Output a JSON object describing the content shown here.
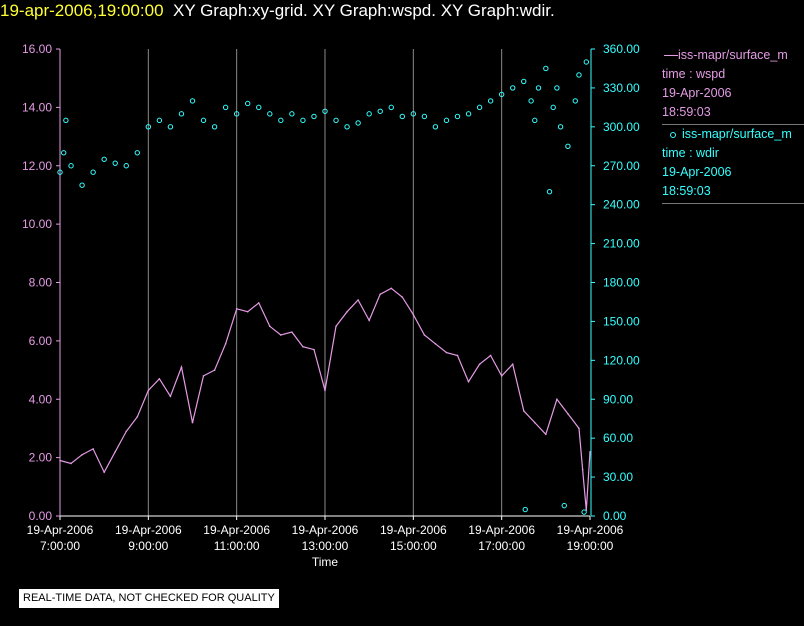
{
  "header": {
    "timestamp": "19-apr-2006,19:00:00",
    "graphs": "XY Graph:xy-grid.  XY Graph:wspd.  XY Graph:wdir."
  },
  "legend": [
    {
      "name": "iss-mapr/surface_m",
      "field": "time : wspd",
      "date": "19-Apr-2006",
      "time": "18:59:03",
      "color": "#e59be5",
      "marker": "line"
    },
    {
      "name": "iss-mapr/surface_m",
      "field": "time : wdir",
      "date": "19-Apr-2006",
      "time": "18:59:03",
      "color": "#33ffff",
      "marker": "circle"
    }
  ],
  "disclaimer": "REAL-TIME DATA, NOT CHECKED FOR QUALITY",
  "chart_data": {
    "type": "line",
    "xlabel": "Time",
    "x_ticks": [
      {
        "date": "19-Apr-2006",
        "time": "7:00:00"
      },
      {
        "date": "19-Apr-2006",
        "time": "9:00:00"
      },
      {
        "date": "19-Apr-2006",
        "time": "11:00:00"
      },
      {
        "date": "19-Apr-2006",
        "time": "13:00:00"
      },
      {
        "date": "19-Apr-2006",
        "time": "15:00:00"
      },
      {
        "date": "19-Apr-2006",
        "time": "17:00:00"
      },
      {
        "date": "19-Apr-2006",
        "time": "19:00:00"
      }
    ],
    "xlim": [
      "19-Apr-2006 07:00",
      "19-Apr-2006 19:00"
    ],
    "grid_x": true,
    "left_axis": {
      "ylim": [
        0,
        16
      ],
      "ticks": [
        "0.00",
        "2.00",
        "4.00",
        "6.00",
        "8.00",
        "10.00",
        "12.00",
        "14.00",
        "16.00"
      ],
      "color": "#e59be5"
    },
    "right_axis": {
      "ylim": [
        0,
        360
      ],
      "ticks": [
        "0.00",
        "30.00",
        "60.00",
        "90.00",
        "120.00",
        "150.00",
        "180.00",
        "210.00",
        "240.00",
        "270.00",
        "300.00",
        "330.00",
        "360.00"
      ],
      "color": "#33ffff"
    },
    "series": [
      {
        "name": "time : wspd",
        "axis": "left",
        "style": "line",
        "color": "#e59be5",
        "points": [
          [
            "07:00",
            1.9
          ],
          [
            "07:15",
            1.8
          ],
          [
            "07:30",
            2.1
          ],
          [
            "07:45",
            2.3
          ],
          [
            "08:00",
            1.5
          ],
          [
            "08:15",
            2.2
          ],
          [
            "08:30",
            2.9
          ],
          [
            "08:45",
            3.4
          ],
          [
            "09:00",
            4.3
          ],
          [
            "09:15",
            4.7
          ],
          [
            "09:30",
            4.1
          ],
          [
            "09:45",
            5.1
          ],
          [
            "10:00",
            3.2
          ],
          [
            "10:15",
            4.8
          ],
          [
            "10:30",
            5.0
          ],
          [
            "10:45",
            5.9
          ],
          [
            "11:00",
            7.1
          ],
          [
            "11:15",
            7.0
          ],
          [
            "11:30",
            7.3
          ],
          [
            "11:45",
            6.5
          ],
          [
            "12:00",
            6.2
          ],
          [
            "12:15",
            6.3
          ],
          [
            "12:30",
            5.8
          ],
          [
            "12:45",
            5.7
          ],
          [
            "13:00",
            4.3
          ],
          [
            "13:15",
            6.5
          ],
          [
            "13:30",
            7.0
          ],
          [
            "13:45",
            7.4
          ],
          [
            "14:00",
            6.7
          ],
          [
            "14:15",
            7.6
          ],
          [
            "14:30",
            7.8
          ],
          [
            "14:45",
            7.5
          ],
          [
            "15:00",
            6.9
          ],
          [
            "15:15",
            6.2
          ],
          [
            "15:30",
            5.9
          ],
          [
            "15:45",
            5.6
          ],
          [
            "16:00",
            5.5
          ],
          [
            "16:15",
            4.6
          ],
          [
            "16:30",
            5.2
          ],
          [
            "16:45",
            5.5
          ],
          [
            "17:00",
            4.8
          ],
          [
            "17:15",
            5.2
          ],
          [
            "17:30",
            3.6
          ],
          [
            "17:45",
            3.2
          ],
          [
            "18:00",
            2.8
          ],
          [
            "18:15",
            4.0
          ],
          [
            "18:30",
            3.5
          ],
          [
            "18:45",
            3.0
          ],
          [
            "18:50",
            1.6
          ],
          [
            "18:55",
            0.2
          ],
          [
            "19:00",
            2.2
          ]
        ]
      },
      {
        "name": "time : wdir",
        "axis": "right",
        "style": "scatter",
        "color": "#33ffff",
        "points": [
          [
            "07:00",
            265
          ],
          [
            "07:05",
            280
          ],
          [
            "07:08",
            305
          ],
          [
            "07:15",
            270
          ],
          [
            "07:30",
            255
          ],
          [
            "07:45",
            265
          ],
          [
            "08:00",
            275
          ],
          [
            "08:15",
            272
          ],
          [
            "08:30",
            270
          ],
          [
            "08:45",
            280
          ],
          [
            "09:00",
            300
          ],
          [
            "09:15",
            305
          ],
          [
            "09:30",
            300
          ],
          [
            "09:45",
            310
          ],
          [
            "10:00",
            320
          ],
          [
            "10:15",
            305
          ],
          [
            "10:30",
            300
          ],
          [
            "10:45",
            315
          ],
          [
            "11:00",
            310
          ],
          [
            "11:15",
            318
          ],
          [
            "11:30",
            315
          ],
          [
            "11:45",
            310
          ],
          [
            "12:00",
            305
          ],
          [
            "12:15",
            310
          ],
          [
            "12:30",
            305
          ],
          [
            "12:45",
            308
          ],
          [
            "13:00",
            312
          ],
          [
            "13:15",
            305
          ],
          [
            "13:30",
            300
          ],
          [
            "13:45",
            303
          ],
          [
            "14:00",
            310
          ],
          [
            "14:15",
            312
          ],
          [
            "14:30",
            315
          ],
          [
            "14:45",
            308
          ],
          [
            "15:00",
            310
          ],
          [
            "15:15",
            308
          ],
          [
            "15:30",
            300
          ],
          [
            "15:45",
            305
          ],
          [
            "16:00",
            308
          ],
          [
            "16:15",
            310
          ],
          [
            "16:30",
            315
          ],
          [
            "16:45",
            320
          ],
          [
            "17:00",
            325
          ],
          [
            "17:15",
            330
          ],
          [
            "17:30",
            335
          ],
          [
            "17:40",
            320
          ],
          [
            "17:45",
            305
          ],
          [
            "17:50",
            330
          ],
          [
            "18:00",
            345
          ],
          [
            "18:05",
            250
          ],
          [
            "18:10",
            315
          ],
          [
            "18:15",
            330
          ],
          [
            "18:20",
            300
          ],
          [
            "18:30",
            285
          ],
          [
            "18:40",
            320
          ],
          [
            "18:45",
            340
          ],
          [
            "18:55",
            350
          ],
          [
            "17:32",
            5
          ],
          [
            "18:25",
            8
          ],
          [
            "18:52",
            3
          ]
        ]
      }
    ]
  }
}
